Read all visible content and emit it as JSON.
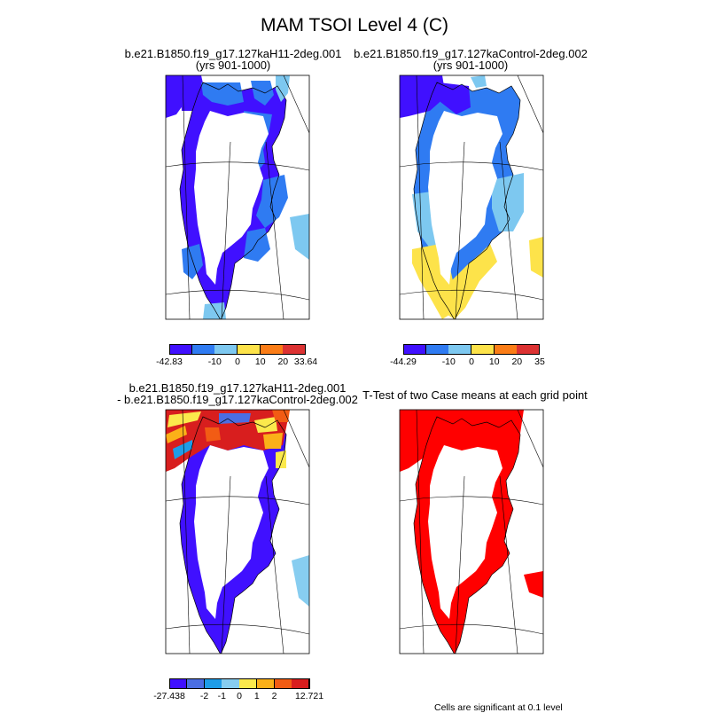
{
  "title": "MAM TSOI Level 4 (C)",
  "panels": {
    "p1": {
      "title_line1": "b.e21.B1850.f19_g17.127kaH11-2deg.001",
      "title_line2": "(yrs 901-1000)"
    },
    "p2": {
      "title_line1": "b.e21.B1850.f19_g17.127kaControl-2deg.002",
      "title_line2": "(yrs 901-1000)"
    },
    "p3": {
      "title_line1": "b.e21.B1850.f19_g17.127kaH11-2deg.001",
      "title_line2": "- b.e21.B1850.f19_g17.127kaControl-2deg.002"
    },
    "p4": {
      "title_line1": "T-Test of two Case means at each grid point"
    }
  },
  "legend1": {
    "colors": [
      "#4010ff",
      "#2f7bf2",
      "#7dc8f0",
      "#fde34a",
      "#fb7d17",
      "#dc3232"
    ],
    "labels": [
      "-42.83",
      "-10",
      "0",
      "10",
      "20",
      "33.64"
    ]
  },
  "legend2": {
    "colors": [
      "#4010ff",
      "#2f7bf2",
      "#7dc8f0",
      "#fde34a",
      "#fb7d17",
      "#dc3232"
    ],
    "labels": [
      "-44.29",
      "-10",
      "0",
      "10",
      "20",
      "35"
    ]
  },
  "legend3": {
    "colors": [
      "#4010ff",
      "#4b6ee3",
      "#1e9ce8",
      "#87cdf0",
      "#fbe94c",
      "#fbb018",
      "#f25c14",
      "#d81e1e"
    ],
    "labels": [
      "-27.438",
      "-2",
      "-1",
      "0",
      "1",
      "2",
      "12.721"
    ]
  },
  "note": "Cells are significant at 0.1 level",
  "colors": {
    "deep_blue": "#4010ff",
    "mid_blue": "#2f7bf2",
    "light_blue": "#7dc8f0",
    "yellow": "#fde34a",
    "significant_red": "#ff0000"
  }
}
